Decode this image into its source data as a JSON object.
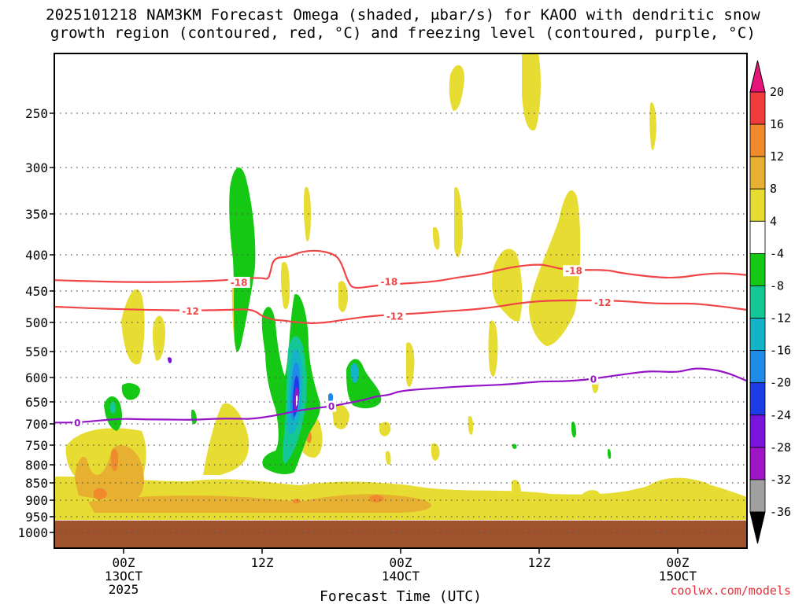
{
  "chart_data": {
    "type": "heatmap",
    "title_line1": "2025101218 NAM3KM Forecast Omega (shaded, μbar/s) for KAOO with dendritic snow",
    "title_line2": "growth region (contoured, red, °C) and freezing level (contoured, purple, °C)",
    "xlabel": "Forecast Time (UTC)",
    "credit": "coolwx.com/models",
    "x_range_hours": [
      0,
      60
    ],
    "y_range_hpa": [
      1030,
      200
    ],
    "x_ticks": [
      {
        "hour": 6,
        "label": "00Z",
        "sub1": "13OCT",
        "sub2": "2025"
      },
      {
        "hour": 18,
        "label": "12Z",
        "sub1": "",
        "sub2": ""
      },
      {
        "hour": 30,
        "label": "00Z",
        "sub1": "14OCT",
        "sub2": ""
      },
      {
        "hour": 42,
        "label": "12Z",
        "sub1": "",
        "sub2": ""
      },
      {
        "hour": 54,
        "label": "00Z",
        "sub1": "15OCT",
        "sub2": ""
      }
    ],
    "y_ticks": [
      {
        "p": 250,
        "label": "250"
      },
      {
        "p": 300,
        "label": "300"
      },
      {
        "p": 350,
        "label": "350"
      },
      {
        "p": 400,
        "label": "400"
      },
      {
        "p": 450,
        "label": "450"
      },
      {
        "p": 500,
        "label": "500"
      },
      {
        "p": 550,
        "label": "550"
      },
      {
        "p": 600,
        "label": "600"
      },
      {
        "p": 650,
        "label": "650"
      },
      {
        "p": 700,
        "label": "700"
      },
      {
        "p": 750,
        "label": "750"
      },
      {
        "p": 800,
        "label": "800"
      },
      {
        "p": 850,
        "label": "850"
      },
      {
        "p": 900,
        "label": "900"
      },
      {
        "p": 950,
        "label": "950"
      },
      {
        "p": 1000,
        "label": "1000"
      }
    ],
    "surface_pressure_hpa": 962,
    "colorbar": {
      "labels": [
        "20",
        "16",
        "12",
        "8",
        "4",
        "-4",
        "-8",
        "-12",
        "-16",
        "-20",
        "-24",
        "-28",
        "-32",
        "-36"
      ],
      "segments": [
        {
          "from": 16,
          "to": 20,
          "color": "#f03c3c"
        },
        {
          "from": 12,
          "to": 16,
          "color": "#f08a2c"
        },
        {
          "from": 8,
          "to": 12,
          "color": "#e8b030"
        },
        {
          "from": 4,
          "to": 8,
          "color": "#e6dc32"
        },
        {
          "from": -4,
          "to": 4,
          "color": "#ffffff"
        },
        {
          "from": -8,
          "to": -4,
          "color": "#14c814"
        },
        {
          "from": -12,
          "to": -8,
          "color": "#14c896"
        },
        {
          "from": -16,
          "to": -12,
          "color": "#14b4c8"
        },
        {
          "from": -20,
          "to": -16,
          "color": "#1e8ce6"
        },
        {
          "from": -24,
          "to": -20,
          "color": "#1e3ce6"
        },
        {
          "from": -28,
          "to": -24,
          "color": "#7814dc"
        },
        {
          "from": -32,
          "to": -28,
          "color": "#a014c8"
        },
        {
          "from": -36,
          "to": -32,
          "color": "#a0a0a0"
        }
      ],
      "top_arrow_color": "#e6147a",
      "bottom_arrow_color": "#000000"
    },
    "colors": {
      "dgz": "#f04646",
      "freezing": "#9614c8",
      "ground": "#a0522d",
      "grid": "#555555",
      "c4": "#e6dc32",
      "c8": "#e8b030",
      "c12": "#f08a2c",
      "n4": "#14c814",
      "n8": "#14c896",
      "n12": "#14b4c8",
      "n16": "#1e8ce6",
      "n20": "#1e3ce6",
      "n24": "#7814dc",
      "n28": "#a014c8",
      "n32": "#a0a0a0"
    },
    "contours": [
      {
        "name": "-18C",
        "label": "-18",
        "color": "#f04646",
        "points": [
          [
            0,
            435
          ],
          [
            4,
            437
          ],
          [
            8,
            438
          ],
          [
            12,
            437
          ],
          [
            15,
            435
          ],
          [
            17,
            432
          ],
          [
            18,
            432
          ],
          [
            18.5,
            434
          ],
          [
            18.7,
            425
          ],
          [
            19,
            404
          ],
          [
            20.3,
            403
          ],
          [
            21,
            398
          ],
          [
            22,
            395
          ],
          [
            23,
            395
          ],
          [
            24.2,
            399
          ],
          [
            24.8,
            408
          ],
          [
            25.5,
            440
          ],
          [
            26,
            447
          ],
          [
            28,
            442
          ],
          [
            30,
            440
          ],
          [
            33,
            437
          ],
          [
            35,
            431
          ],
          [
            37,
            427
          ],
          [
            38.5,
            421
          ],
          [
            40,
            416
          ],
          [
            42,
            413
          ],
          [
            43,
            416
          ],
          [
            44,
            420
          ],
          [
            46,
            421
          ],
          [
            48,
            421
          ],
          [
            49,
            425
          ],
          [
            52,
            431
          ],
          [
            54,
            432
          ],
          [
            56,
            427
          ],
          [
            58,
            425
          ],
          [
            60,
            428
          ]
        ],
        "labels": [
          {
            "h": 16,
            "p": 438
          },
          {
            "h": 29,
            "p": 437
          },
          {
            "h": 45,
            "p": 422
          }
        ]
      },
      {
        "name": "-12C",
        "label": "-12",
        "color": "#f04646",
        "points": [
          [
            0,
            475
          ],
          [
            4,
            478
          ],
          [
            8,
            480
          ],
          [
            12,
            481
          ],
          [
            15,
            480
          ],
          [
            16.5,
            479
          ],
          [
            17,
            480
          ],
          [
            17.5,
            483
          ],
          [
            18,
            490
          ],
          [
            19,
            496
          ],
          [
            20,
            497
          ],
          [
            21,
            500
          ],
          [
            23,
            502
          ],
          [
            26,
            493
          ],
          [
            28,
            489
          ],
          [
            30,
            487
          ],
          [
            32,
            485
          ],
          [
            34,
            482
          ],
          [
            36,
            480
          ],
          [
            38,
            476
          ],
          [
            40,
            470
          ],
          [
            42,
            466
          ],
          [
            44,
            465
          ],
          [
            46,
            465
          ],
          [
            48,
            465
          ],
          [
            50,
            467
          ],
          [
            52,
            470
          ],
          [
            54,
            470
          ],
          [
            55.5,
            470
          ],
          [
            57,
            473
          ],
          [
            58,
            475
          ],
          [
            60,
            480
          ]
        ],
        "labels": [
          {
            "h": 11.8,
            "p": 482
          },
          {
            "h": 29.5,
            "p": 490
          },
          {
            "h": 47.5,
            "p": 468
          }
        ]
      },
      {
        "name": "0C",
        "label": "0",
        "color": "#9614c8",
        "points": [
          [
            0,
            697
          ],
          [
            2,
            697
          ],
          [
            4,
            692
          ],
          [
            6,
            688
          ],
          [
            8,
            690
          ],
          [
            10,
            690
          ],
          [
            12,
            691
          ],
          [
            14,
            688
          ],
          [
            16,
            688
          ],
          [
            17,
            689
          ],
          [
            19,
            682
          ],
          [
            21,
            670
          ],
          [
            23,
            663
          ],
          [
            24,
            660
          ],
          [
            26,
            650
          ],
          [
            27,
            645
          ],
          [
            28,
            638
          ],
          [
            29,
            636
          ],
          [
            30,
            627
          ],
          [
            33,
            622
          ],
          [
            36,
            617
          ],
          [
            39,
            615
          ],
          [
            42,
            608
          ],
          [
            44,
            608
          ],
          [
            46,
            605
          ],
          [
            48,
            598
          ],
          [
            49,
            595
          ],
          [
            50,
            592
          ],
          [
            51,
            589
          ],
          [
            52,
            588
          ],
          [
            54,
            590
          ],
          [
            55,
            584
          ],
          [
            56,
            582
          ],
          [
            58,
            588
          ],
          [
            60,
            607
          ]
        ],
        "labels": [
          {
            "h": 2,
            "p": 697
          },
          {
            "h": 24,
            "p": 660
          },
          {
            "h": 46.7,
            "p": 603
          }
        ]
      }
    ]
  }
}
